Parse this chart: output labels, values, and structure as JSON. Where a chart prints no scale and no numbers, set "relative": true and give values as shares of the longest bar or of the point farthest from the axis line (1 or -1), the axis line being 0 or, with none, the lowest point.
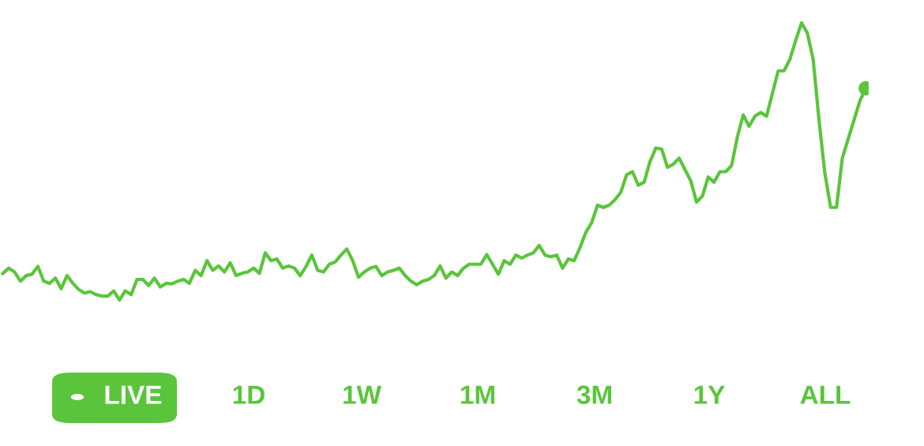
{
  "chart_data": {
    "type": "line",
    "relative": true,
    "categories": [
      null,
      null,
      null,
      null,
      null,
      null,
      null,
      null,
      null,
      null,
      null,
      null,
      null,
      null,
      null,
      null,
      null,
      null,
      null,
      null,
      null,
      null,
      null,
      null,
      null,
      null,
      null,
      null,
      null,
      null,
      null,
      null,
      null,
      null,
      null,
      null,
      null,
      null,
      null,
      null,
      null,
      null,
      null,
      null,
      null,
      null,
      null,
      null,
      null,
      null,
      null,
      null,
      null,
      null,
      null,
      null,
      null,
      null,
      null,
      null,
      null,
      null,
      null,
      null,
      null,
      null,
      null,
      null,
      null,
      null,
      null,
      null,
      null,
      null,
      null,
      null,
      null,
      null,
      null,
      null,
      null,
      null,
      null,
      null,
      null,
      null,
      null,
      null,
      null,
      null,
      null,
      null,
      null,
      null,
      null,
      null,
      null,
      null,
      null,
      null,
      null,
      null,
      null,
      null,
      null,
      null,
      null,
      null,
      null,
      null,
      null,
      null,
      null,
      null,
      null,
      null,
      null,
      null,
      null,
      null,
      null,
      null,
      null,
      null,
      null,
      null,
      null,
      null,
      null,
      null,
      null,
      null,
      null,
      null,
      null,
      null,
      null,
      null,
      null,
      null,
      null,
      null,
      null,
      null,
      null,
      null,
      null,
      null,
      null
    ],
    "series": [
      {
        "color": "#5ac53b",
        "values": [
          0.096,
          0.115,
          0.101,
          0.068,
          0.088,
          0.093,
          0.121,
          0.068,
          0.06,
          0.079,
          0.041,
          0.088,
          0.06,
          0.038,
          0.025,
          0.03,
          0.019,
          0.014,
          0.014,
          0.033,
          0.0,
          0.033,
          0.019,
          0.074,
          0.074,
          0.052,
          0.079,
          0.047,
          0.06,
          0.058,
          0.068,
          0.074,
          0.06,
          0.107,
          0.088,
          0.142,
          0.107,
          0.123,
          0.101,
          0.134,
          0.088,
          0.096,
          0.101,
          0.115,
          0.096,
          0.17,
          0.142,
          0.148,
          0.115,
          0.123,
          0.115,
          0.088,
          0.121,
          0.162,
          0.107,
          0.101,
          0.129,
          0.137,
          0.162,
          0.184,
          0.142,
          0.082,
          0.101,
          0.115,
          0.121,
          0.088,
          0.101,
          0.107,
          0.115,
          0.088,
          0.068,
          0.055,
          0.068,
          0.074,
          0.088,
          0.123,
          0.079,
          0.101,
          0.088,
          0.115,
          0.129,
          0.129,
          0.129,
          0.164,
          0.129,
          0.093,
          0.142,
          0.129,
          0.162,
          0.151,
          0.162,
          0.17,
          0.197,
          0.162,
          0.156,
          0.162,
          0.115,
          0.148,
          0.142,
          0.189,
          0.244,
          0.279,
          0.342,
          0.334,
          0.342,
          0.362,
          0.389,
          0.452,
          0.463,
          0.414,
          0.425,
          0.499,
          0.548,
          0.545,
          0.479,
          0.49,
          0.512,
          0.471,
          0.43,
          0.353,
          0.375,
          0.444,
          0.425,
          0.463,
          0.463,
          0.485,
          0.589,
          0.668,
          0.627,
          0.663,
          0.677,
          0.663,
          0.745,
          0.827,
          0.827,
          0.868,
          0.937,
          1.0,
          0.964,
          0.868,
          0.649,
          0.458,
          0.334,
          0.334,
          0.512,
          0.581,
          0.649,
          0.718,
          0.764
        ]
      }
    ],
    "annotations": [
      "LIVE",
      "1D",
      "1W",
      "1M",
      "3M",
      "1Y",
      "ALL"
    ],
    "legend": false
  }
}
